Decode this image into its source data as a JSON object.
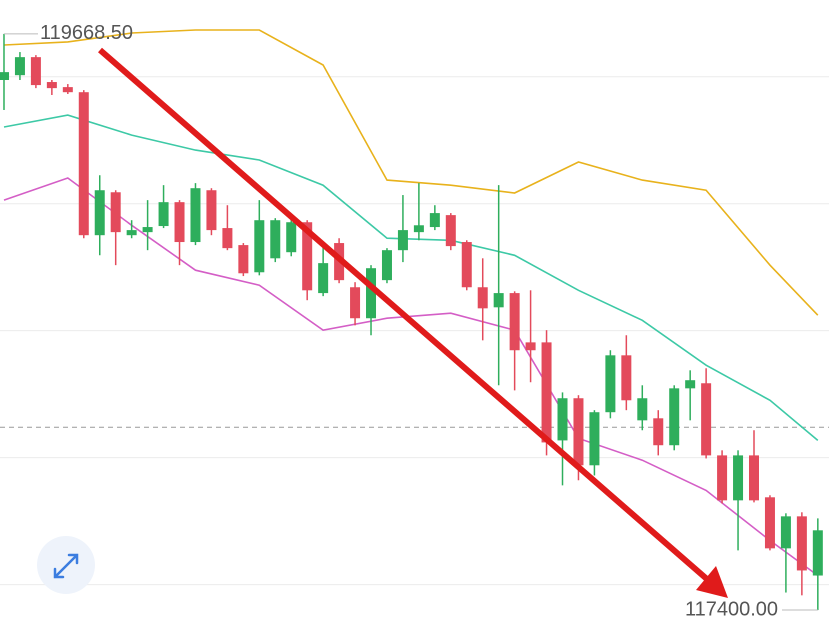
{
  "chart_data": {
    "type": "candlestick",
    "xlim": [
      -0.25,
      51.7
    ],
    "ylim": [
      117290,
      119802
    ],
    "gridlines": [
      117500,
      118000,
      118500,
      119000,
      119500
    ],
    "grid": true,
    "up_color": "#2eae5c",
    "down_color": "#e34a5b",
    "candles": {
      "open": [
        119487,
        119506,
        119577,
        119479,
        119459,
        119439,
        118876,
        119045,
        118876,
        118888,
        118912,
        119006,
        118849,
        119053,
        118904,
        118837,
        118730,
        118785,
        118809,
        118927,
        118648,
        118845,
        118671,
        118549,
        118699,
        118817,
        118888,
        118908,
        118955,
        118849,
        118671,
        118592,
        118648,
        118454,
        118454,
        118068,
        118234,
        117970,
        118179,
        118403,
        118147,
        118155,
        118049,
        118273,
        118293,
        118009,
        117832,
        118009,
        117844,
        117643,
        117769,
        117536
      ],
      "high": [
        119668.5,
        119597,
        119585,
        119487,
        119471,
        119447,
        119112,
        119053,
        118935,
        119014,
        119073,
        119014,
        119081,
        119061,
        118994,
        118845,
        119014,
        118943,
        118943,
        118935,
        118837,
        118864,
        118691,
        118758,
        118825,
        119034,
        119081,
        118994,
        118963,
        118856,
        118785,
        119073,
        118655,
        118659,
        118502,
        118257,
        118246,
        118187,
        118423,
        118482,
        118285,
        118187,
        118285,
        118344,
        118352,
        118029,
        118029,
        118108,
        117852,
        117781,
        117785,
        117761
      ],
      "low": [
        119369,
        119487,
        119455,
        119428,
        119432,
        118864,
        118797,
        118758,
        118864,
        118817,
        118904,
        118758,
        118837,
        118876,
        118817,
        118715,
        118718,
        118770,
        118793,
        118620,
        118636,
        118687,
        118521,
        118482,
        118687,
        118770,
        118856,
        118896,
        118817,
        118659,
        118462,
        118285,
        118265,
        118297,
        118009,
        117891,
        117911,
        117930,
        118155,
        118187,
        118108,
        118009,
        118029,
        118147,
        117997,
        117820,
        117635,
        117824,
        117635,
        117469,
        117458,
        117400
      ],
      "close": [
        119518,
        119577,
        119467,
        119455,
        119439,
        118876,
        119053,
        118888,
        118896,
        118908,
        119006,
        118849,
        119061,
        118896,
        118825,
        118726,
        118935,
        118935,
        118927,
        118659,
        118766,
        118699,
        118549,
        118746,
        118817,
        118896,
        118915,
        118963,
        118833,
        118671,
        118588,
        118648,
        118423,
        118423,
        118060,
        118234,
        117970,
        118179,
        118403,
        118226,
        118234,
        118049,
        118273,
        118305,
        118009,
        117832,
        118009,
        117832,
        117643,
        117769,
        117556,
        117714
      ]
    },
    "bands": {
      "x": [
        0,
        4,
        8,
        12,
        16,
        20,
        24,
        28,
        32,
        36,
        40,
        44,
        48,
        51
      ],
      "upper": {
        "color": "#e8b21c",
        "values": [
          119625,
          119637,
          119672,
          119684,
          119684,
          119546,
          119093,
          119073,
          119042,
          119164,
          119093,
          119053,
          118758,
          118561
        ]
      },
      "middle": {
        "color": "#3dc9a6",
        "values": [
          119302,
          119349,
          119270,
          119211,
          119172,
          119073,
          118864,
          118856,
          118797,
          118659,
          118541,
          118364,
          118226,
          118068
        ]
      },
      "lower": {
        "color": "#d45ec6",
        "values": [
          119014,
          119101,
          118915,
          118738,
          118679,
          118502,
          118549,
          118569,
          118502,
          118076,
          117990,
          117871,
          117674,
          117536
        ]
      }
    },
    "price_line": 118120,
    "high_marker": {
      "value": 119668.5,
      "label": "119668.50"
    },
    "low_marker": {
      "value": 117400,
      "label": "117400.00"
    }
  }
}
